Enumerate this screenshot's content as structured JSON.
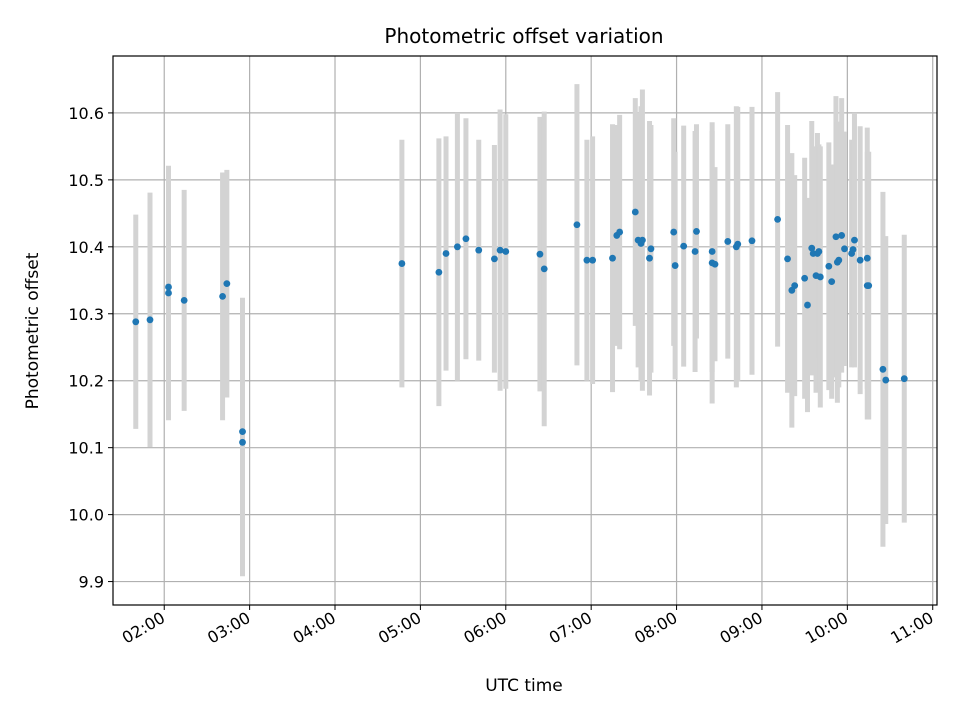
{
  "chart_data": {
    "type": "scatter",
    "title": "Photometric offset variation",
    "xlabel": "UTC time",
    "ylabel": "Photometric offset",
    "xlim": [
      "01:24",
      "11:03"
    ],
    "ylim": [
      9.865,
      10.685
    ],
    "x_ticks": [
      "02:00",
      "03:00",
      "04:00",
      "05:00",
      "06:00",
      "07:00",
      "08:00",
      "09:00",
      "10:00",
      "11:00"
    ],
    "y_ticks": [
      "9.9",
      "10.0",
      "10.1",
      "10.2",
      "10.3",
      "10.4",
      "10.5",
      "10.6"
    ],
    "grid": true,
    "colors": {
      "points": "#1f77b4",
      "error_bars": "#d3d3d3",
      "grid": "#b0b0b0"
    },
    "series": [
      {
        "x": [
          "01:40",
          "01:50",
          "02:03",
          "02:03",
          "02:14",
          "02:41",
          "02:44",
          "02:55",
          "02:55",
          "04:47",
          "05:13",
          "05:18",
          "05:26",
          "05:32",
          "05:41",
          "05:52",
          "05:56",
          "06:00",
          "06:24",
          "06:27",
          "06:50",
          "06:57",
          "07:01",
          "07:15",
          "07:18",
          "07:20",
          "07:31",
          "07:33",
          "07:35",
          "07:36",
          "07:41",
          "07:42",
          "07:58",
          "07:59",
          "08:05",
          "08:13",
          "08:14",
          "08:25",
          "08:25",
          "08:27",
          "08:36",
          "08:42",
          "08:43",
          "08:53",
          "09:11",
          "09:18",
          "09:21",
          "09:23",
          "09:30",
          "09:32",
          "09:35",
          "09:36",
          "09:38",
          "09:39",
          "09:40",
          "09:41",
          "09:47",
          "09:49",
          "09:52",
          "09:53",
          "09:54",
          "09:56",
          "09:58",
          "10:03",
          "10:04",
          "10:05",
          "10:09",
          "10:14",
          "10:14",
          "10:15",
          "10:25",
          "10:27",
          "10:40"
        ],
        "y": [
          10.288,
          10.291,
          10.34,
          10.331,
          10.32,
          10.326,
          10.345,
          10.124,
          10.108,
          10.375,
          10.362,
          10.39,
          10.4,
          10.412,
          10.395,
          10.382,
          10.395,
          10.393,
          10.389,
          10.367,
          10.433,
          10.38,
          10.38,
          10.383,
          10.417,
          10.422,
          10.452,
          10.41,
          10.405,
          10.41,
          10.383,
          10.397,
          10.422,
          10.372,
          10.401,
          10.393,
          10.423,
          10.376,
          10.393,
          10.374,
          10.408,
          10.4,
          10.404,
          10.409,
          10.441,
          10.382,
          10.335,
          10.342,
          10.353,
          10.313,
          10.398,
          10.39,
          10.357,
          10.39,
          10.393,
          10.355,
          10.371,
          10.348,
          10.415,
          10.377,
          10.38,
          10.417,
          10.397,
          10.39,
          10.396,
          10.41,
          10.38,
          10.342,
          10.383,
          10.342,
          10.217,
          10.201,
          10.203
        ],
        "err": [
          0.16,
          0.19,
          0.18,
          0.19,
          0.165,
          0.185,
          0.17,
          0.2,
          0.2,
          0.185,
          0.2,
          0.175,
          0.2,
          0.18,
          0.165,
          0.17,
          0.21,
          0.205,
          0.205,
          0.235,
          0.21,
          0.18,
          0.185,
          0.2,
          0.165,
          0.175,
          0.17,
          0.19,
          0.205,
          0.225,
          0.205,
          0.185,
          0.17,
          0.17,
          0.18,
          0.18,
          0.16,
          0.21,
          0.18,
          0.145,
          0.175,
          0.21,
          0.205,
          0.2,
          0.19,
          0.2,
          0.205,
          0.165,
          0.18,
          0.16,
          0.19,
          0.16,
          0.175,
          0.18,
          0.16,
          0.195,
          0.185,
          0.175,
          0.21,
          0.21,
          0.19,
          0.205,
          0.175,
          0.17,
          0.16,
          0.19,
          0.2,
          0.2,
          0.195,
          0.2,
          0.265,
          0.215,
          0.215
        ]
      }
    ]
  }
}
